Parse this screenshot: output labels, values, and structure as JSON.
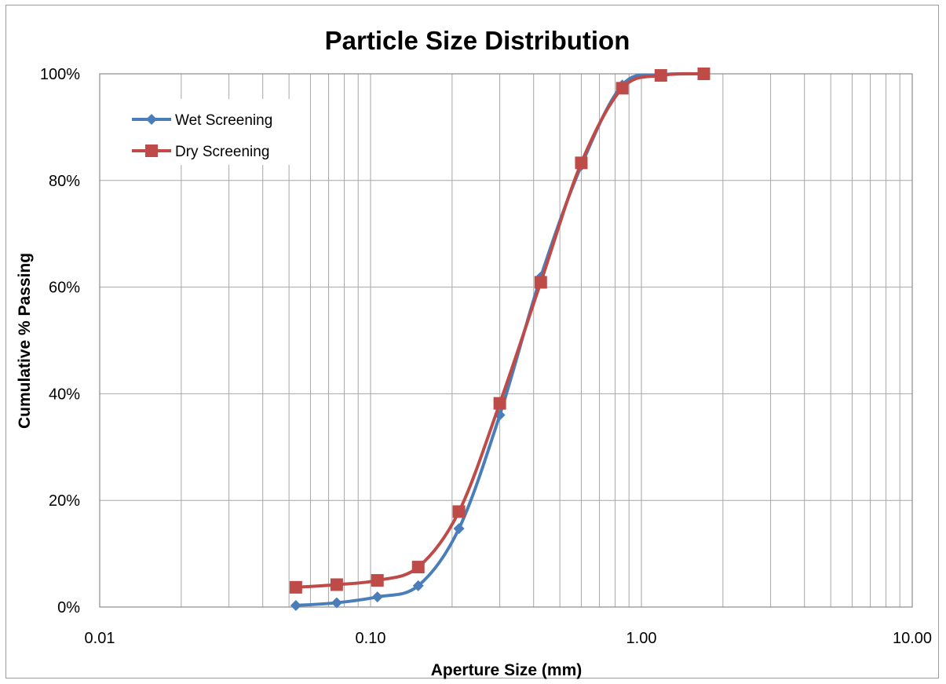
{
  "chart_data": {
    "type": "scatter",
    "title": "Particle Size Distribution",
    "xlabel": "Aperture Size (mm)",
    "ylabel": "Cumulative % Passing",
    "x_scale": "log",
    "xlim": [
      0.01,
      10.0
    ],
    "ylim": [
      0,
      100
    ],
    "x_ticks": [
      {
        "value": 0.01,
        "label": "0.01"
      },
      {
        "value": 0.1,
        "label": "0.10"
      },
      {
        "value": 1.0,
        "label": "1.00"
      },
      {
        "value": 10.0,
        "label": "10.00"
      }
    ],
    "y_ticks": [
      {
        "value": 0,
        "label": "0%"
      },
      {
        "value": 20,
        "label": "20%"
      },
      {
        "value": 40,
        "label": "40%"
      },
      {
        "value": 60,
        "label": "60%"
      },
      {
        "value": 80,
        "label": "80%"
      },
      {
        "value": 100,
        "label": "100%"
      }
    ],
    "grid": true,
    "legend_position": "top-left",
    "smooth_lines": true,
    "series": [
      {
        "name": "Wet Screening",
        "color": "#4a7ebb",
        "marker": "diamond",
        "x": [
          0.053,
          0.075,
          0.106,
          0.15,
          0.212,
          0.3,
          0.425,
          0.6,
          0.85,
          1.18,
          1.7
        ],
        "y": [
          0.3,
          0.8,
          1.9,
          4.0,
          14.7,
          36.0,
          61.9,
          82.8,
          97.9,
          99.8,
          100.0
        ]
      },
      {
        "name": "Dry Screening",
        "color": "#be4b48",
        "marker": "square",
        "x": [
          0.053,
          0.075,
          0.106,
          0.15,
          0.212,
          0.3,
          0.425,
          0.6,
          0.85,
          1.18,
          1.7
        ],
        "y": [
          3.7,
          4.2,
          5.0,
          7.5,
          17.9,
          38.2,
          60.9,
          83.3,
          97.3,
          99.7,
          100.0
        ]
      }
    ]
  }
}
